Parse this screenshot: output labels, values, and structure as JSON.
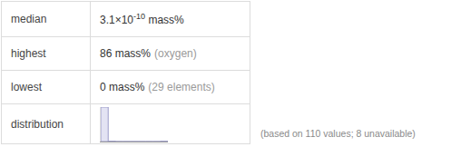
{
  "table": {
    "rows": [
      {
        "label": "median",
        "value": {
          "mantissa": "3.1×10",
          "exponent": "-10",
          "unit": " mass%"
        }
      },
      {
        "label": "highest",
        "value": "86 mass%",
        "aside": "(oxygen)"
      },
      {
        "label": "lowest",
        "value": "0 mass%",
        "aside": "(29 elements)"
      },
      {
        "label": "distribution"
      }
    ]
  },
  "note": "(based on 110 values; 8 unavailable)",
  "chart_data": {
    "type": "histogram",
    "bins": [
      0,
      10,
      20,
      30,
      40,
      50,
      60,
      70,
      80,
      90
    ],
    "counts": [
      108,
      1,
      0,
      0,
      0,
      0,
      0,
      0,
      1
    ],
    "color": "#e3e3f3",
    "xlim": [
      0,
      90
    ],
    "ylim": [
      0,
      108
    ],
    "tick_labels": false,
    "grid": false
  }
}
